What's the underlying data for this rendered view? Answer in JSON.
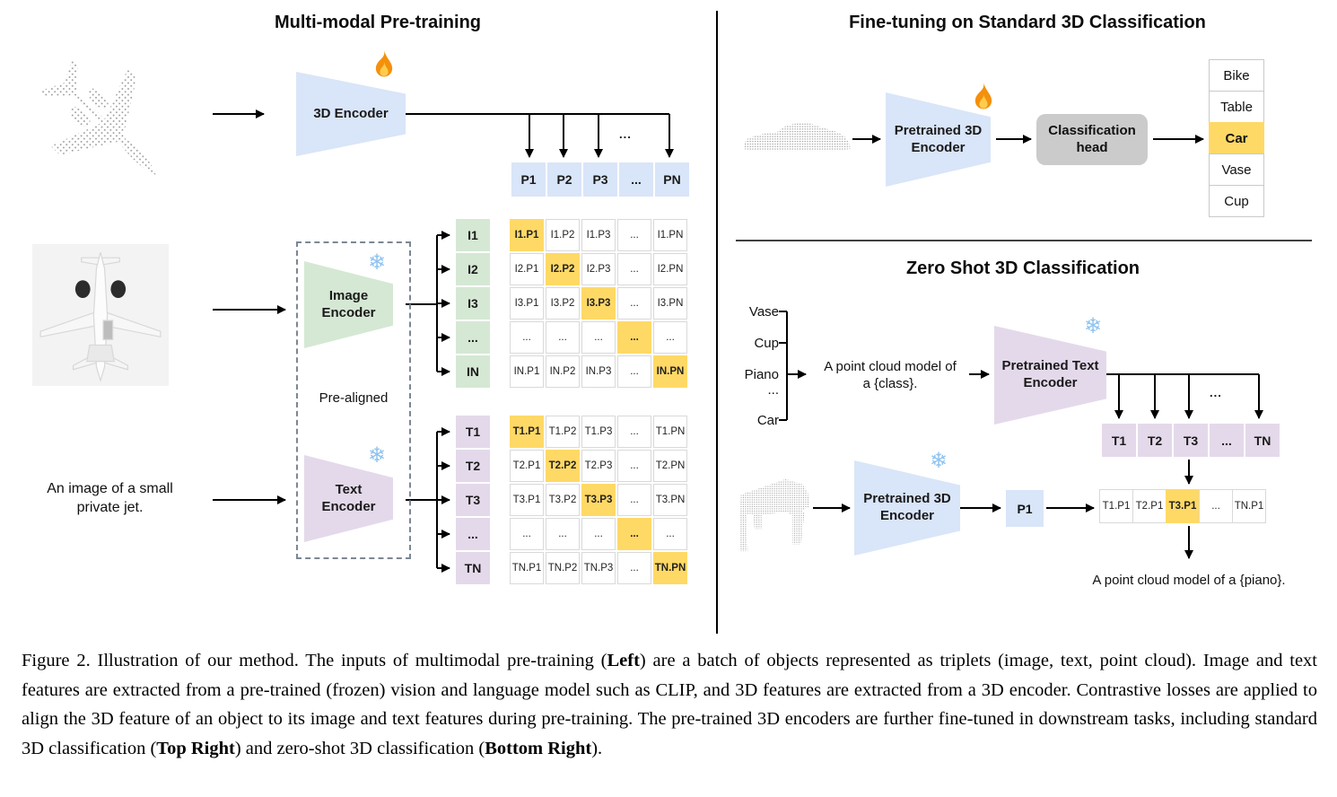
{
  "colors": {
    "blue": "#d9e5f8",
    "green": "#d5e8d4",
    "purple": "#e4d9ea",
    "orange": "#ffd966",
    "gray": "#cbcbcb"
  },
  "icons": {
    "snowflake_glyph": "❄",
    "fire": "flame",
    "snowflake_meaning": "frozen",
    "fire_meaning": "trainable"
  },
  "left": {
    "title": "Multi-modal Pre-training",
    "encoder3d_label": "3D Encoder",
    "image_encoder_line1": "Image",
    "image_encoder_line2": "Encoder",
    "text_encoder_line1": "Text",
    "text_encoder_line2": "Encoder",
    "pre_aligned_label": "Pre-aligned",
    "input_text_line1": "An image of a small",
    "input_text_line2": "private jet.",
    "dots": "...",
    "p_row": [
      "P1",
      "P2",
      "P3",
      "...",
      "PN"
    ],
    "i_col": [
      "I1",
      "I2",
      "I3",
      "...",
      "IN"
    ],
    "t_col": [
      "T1",
      "T2",
      "T3",
      "...",
      "TN"
    ],
    "i_matrix": [
      [
        "I1.P1",
        "I1.P2",
        "I1.P3",
        "...",
        "I1.PN"
      ],
      [
        "I2.P1",
        "I2.P2",
        "I2.P3",
        "...",
        "I2.PN"
      ],
      [
        "I3.P1",
        "I3.P2",
        "I3.P3",
        "...",
        "I3.PN"
      ],
      [
        "...",
        "...",
        "...",
        "...",
        "..."
      ],
      [
        "IN.P1",
        "IN.P2",
        "IN.P3",
        "...",
        "IN.PN"
      ]
    ],
    "t_matrix": [
      [
        "T1.P1",
        "T1.P2",
        "T1.P3",
        "...",
        "T1.PN"
      ],
      [
        "T2.P1",
        "T2.P2",
        "T2.P3",
        "...",
        "T2.PN"
      ],
      [
        "T3.P1",
        "T3.P2",
        "T3.P3",
        "...",
        "T3.PN"
      ],
      [
        "...",
        "...",
        "...",
        "...",
        "..."
      ],
      [
        "TN.P1",
        "TN.P2",
        "TN.P3",
        "...",
        "TN.PN"
      ]
    ]
  },
  "top_right": {
    "title": "Fine-tuning on Standard 3D Classification",
    "encoder_line1": "Pretrained 3D",
    "encoder_line2": "Encoder",
    "head_line1": "Classification",
    "head_line2": "head",
    "classes": [
      "Bike",
      "Table",
      "Car",
      "Vase",
      "Cup"
    ],
    "predicted_class": "Car"
  },
  "bottom_right": {
    "title": "Zero Shot 3D Classification",
    "class_list": [
      "Vase",
      "Cup",
      "Piano",
      "...",
      "Car"
    ],
    "prompt_line1": "A point cloud model of",
    "prompt_line2": "a {class}.",
    "text_encoder_line1": "Pretrained Text",
    "text_encoder_line2": "Encoder",
    "encoder3d_line1": "Pretrained 3D",
    "encoder3d_line2": "Encoder",
    "p_cell": "P1",
    "t_row": [
      "T1",
      "T2",
      "T3",
      "...",
      "TN"
    ],
    "sim_row": [
      "T1.P1",
      "T2.P1",
      "T3.P1",
      "...",
      "TN.P1"
    ],
    "dots": "...",
    "result_text": "A point cloud model of a {piano}."
  },
  "caption": {
    "segments": [
      {
        "text": "Figure 2. Illustration of our method. The inputs of multimodal pre-training (",
        "bold": false
      },
      {
        "text": "Left",
        "bold": true
      },
      {
        "text": ") are a batch of objects represented as triplets (image, text, point cloud). Image and text features are extracted from a pre-trained (frozen) vision and language model such as CLIP, and 3D features are extracted from a 3D encoder. Contrastive losses are applied to align the 3D feature of an object to its image and text features during pre-training. The pre-trained 3D encoders are further fine-tuned in downstream tasks, including standard 3D classification (",
        "bold": false
      },
      {
        "text": "Top Right",
        "bold": true
      },
      {
        "text": ") and zero-shot 3D classification (",
        "bold": false
      },
      {
        "text": "Bottom Right",
        "bold": true
      },
      {
        "text": ").",
        "bold": false
      }
    ]
  }
}
